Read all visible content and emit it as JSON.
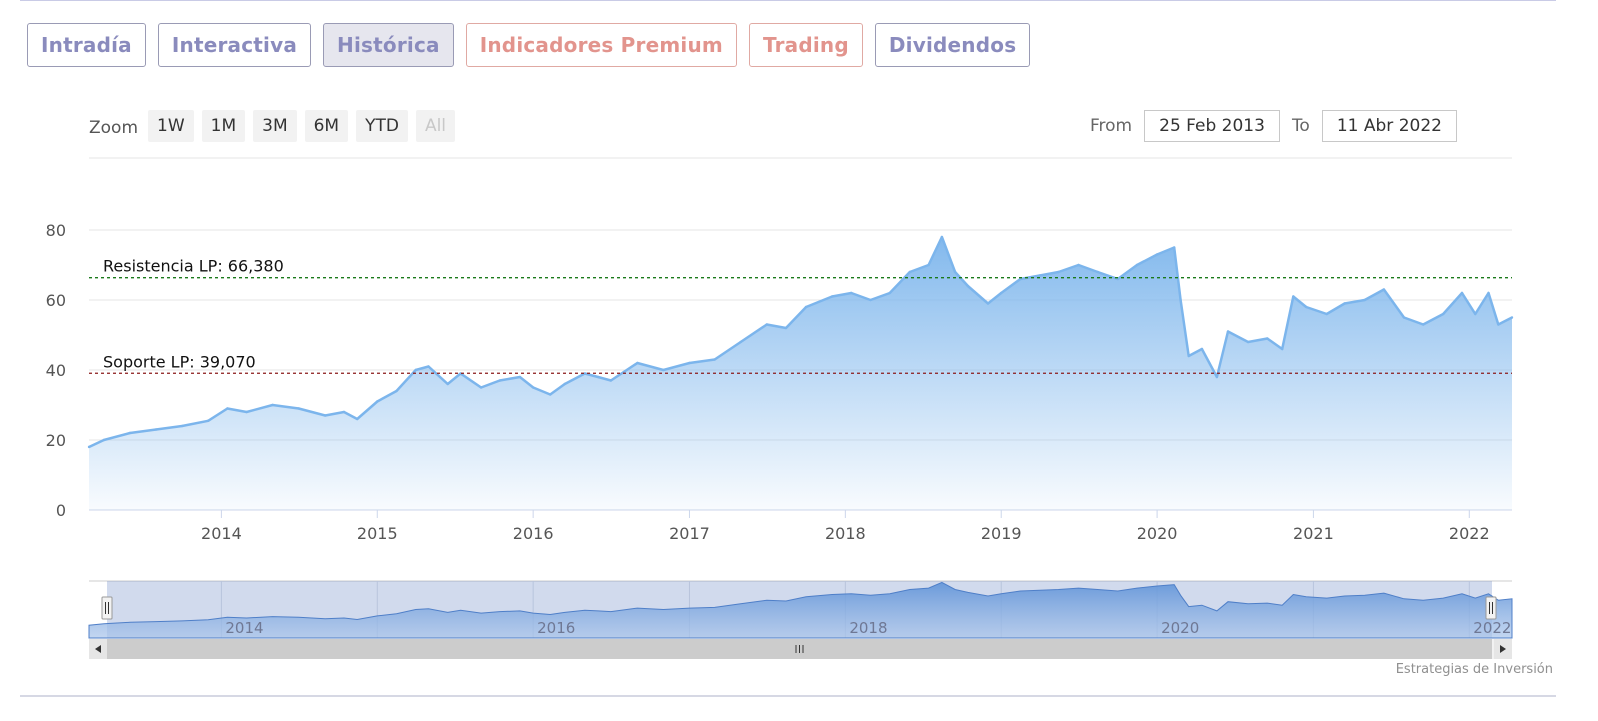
{
  "tabs": [
    {
      "label": "Intradía",
      "kind": "normal",
      "active": false
    },
    {
      "label": "Interactiva",
      "kind": "normal",
      "active": false
    },
    {
      "label": "Histórica",
      "kind": "normal",
      "active": true
    },
    {
      "label": "Indicadores Premium",
      "kind": "premium",
      "active": false
    },
    {
      "label": "Trading",
      "kind": "premium",
      "active": false
    },
    {
      "label": "Dividendos",
      "kind": "normal",
      "active": false
    }
  ],
  "range_selector": {
    "zoom_label": "Zoom",
    "buttons": [
      "1W",
      "1M",
      "3M",
      "6M",
      "YTD",
      "All"
    ],
    "selected": "All",
    "from_label": "From",
    "from_value": "25 Feb 2013",
    "to_label": "To",
    "to_value": "11 Abr 2022"
  },
  "credit": "Estrategias de Inversión",
  "colors": {
    "series_line": "#7cb5ec",
    "resistance": "#1a7a1a",
    "support": "#8b1a1a",
    "tab_text": "#8a8bbd",
    "tab_premium_text": "#e2948d"
  },
  "chart_data": {
    "type": "area",
    "x_start": "2013-02-25",
    "x_end": "2022-04-11",
    "ylim": [
      0,
      80
    ],
    "y_ticks": [
      0,
      20,
      40,
      60,
      80
    ],
    "x_ticks": [
      "2014",
      "2015",
      "2016",
      "2017",
      "2018",
      "2019",
      "2020",
      "2021",
      "2022"
    ],
    "navigator_ticks": [
      "2014",
      "2016",
      "2018",
      "2020",
      "2022"
    ],
    "grid": true,
    "series": [
      {
        "x": [
          "2013-02-25",
          "2013-04-01",
          "2013-06-01",
          "2013-08-01",
          "2013-10-01",
          "2013-12-01",
          "2014-01-15",
          "2014-03-01",
          "2014-05-01",
          "2014-07-01",
          "2014-09-01",
          "2014-10-15",
          "2014-11-15",
          "2015-01-01",
          "2015-02-15",
          "2015-04-01",
          "2015-05-01",
          "2015-06-15",
          "2015-07-15",
          "2015-09-01",
          "2015-10-15",
          "2015-12-01",
          "2016-01-01",
          "2016-02-10",
          "2016-03-15",
          "2016-05-01",
          "2016-06-01",
          "2016-07-01",
          "2016-09-01",
          "2016-11-01",
          "2017-01-01",
          "2017-03-01",
          "2017-05-01",
          "2017-07-01",
          "2017-08-15",
          "2017-10-01",
          "2017-12-01",
          "2018-01-15",
          "2018-03-01",
          "2018-04-15",
          "2018-06-01",
          "2018-07-15",
          "2018-08-15",
          "2018-09-15",
          "2018-10-15",
          "2018-12-01",
          "2019-01-01",
          "2019-02-15",
          "2019-04-01",
          "2019-05-15",
          "2019-07-01",
          "2019-08-15",
          "2019-10-01",
          "2019-11-15",
          "2020-01-01",
          "2020-02-10",
          "2020-02-25",
          "2020-03-15",
          "2020-04-15",
          "2020-05-20",
          "2020-06-15",
          "2020-08-01",
          "2020-09-15",
          "2020-10-20",
          "2020-11-15",
          "2020-12-15",
          "2021-02-01",
          "2021-03-15",
          "2021-05-01",
          "2021-06-15",
          "2021-08-01",
          "2021-09-15",
          "2021-11-01",
          "2021-12-15",
          "2022-01-15",
          "2022-02-15",
          "2022-03-10",
          "2022-04-11"
        ],
        "y": [
          18,
          20,
          22,
          23,
          24,
          25.5,
          29,
          28,
          30,
          29,
          27,
          28,
          26,
          31,
          34,
          40,
          41,
          36,
          39,
          35,
          37,
          38,
          35,
          33,
          36,
          39,
          38,
          37,
          42,
          40,
          42,
          43,
          48,
          53,
          52,
          58,
          61,
          62,
          60,
          62,
          68,
          70,
          78,
          68,
          64,
          59,
          62,
          66,
          67,
          68,
          70,
          68,
          66,
          70,
          73,
          75,
          60,
          44,
          46,
          38,
          51,
          48,
          49,
          46,
          61,
          58,
          56,
          59,
          60,
          63,
          55,
          53,
          56,
          62,
          56,
          62,
          53,
          55
        ]
      }
    ],
    "annotations": [
      {
        "label": "Resistencia LP: 66,380",
        "value": 66.38,
        "style": "dashed",
        "color": "#1a7a1a"
      },
      {
        "label": "Soporte LP: 39,070",
        "value": 39.07,
        "style": "dashed",
        "color": "#8b1a1a"
      }
    ]
  }
}
